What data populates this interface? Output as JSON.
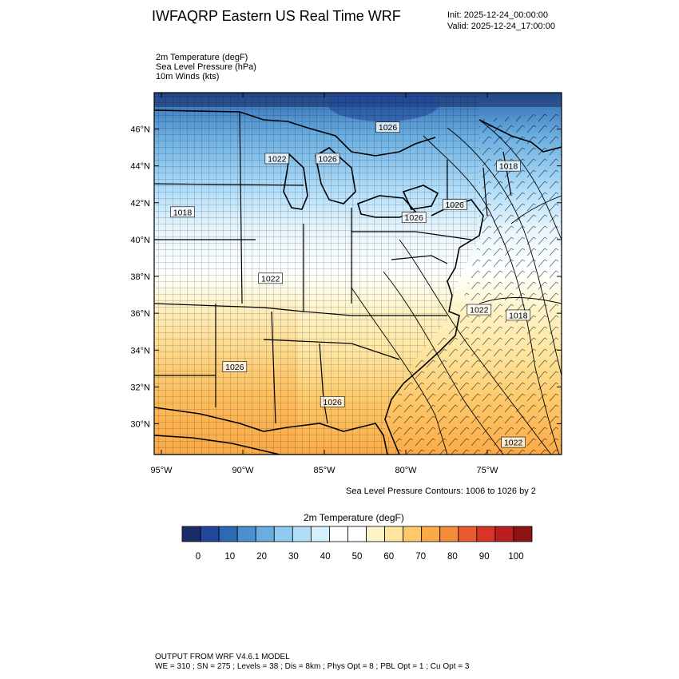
{
  "header": {
    "title": "IWFAQRP Eastern US Real Time WRF",
    "init": "Init: 2025-12-24_00:00:00",
    "valid": "Valid: 2025-12-24_17:00:00"
  },
  "fields": [
    "2m Temperature   (degF)",
    "Sea Level Pressure   (hPa)",
    "10m Winds   (kts)"
  ],
  "map": {
    "lat_labels": [
      "46°N",
      "44°N",
      "42°N",
      "40°N",
      "38°N",
      "36°N",
      "34°N",
      "32°N",
      "30°N"
    ],
    "lat_values": [
      46,
      44,
      42,
      40,
      38,
      36,
      34,
      32,
      30
    ],
    "lon_labels": [
      "95°W",
      "90°W",
      "85°W",
      "80°W",
      "75°W"
    ],
    "lon_values": [
      -95,
      -90,
      -85,
      -80,
      -75
    ],
    "pressure_labels": [
      {
        "text": "1026",
        "lon": -81.1,
        "lat": 46.1
      },
      {
        "text": "1022",
        "lon": -87.9,
        "lat": 44.4
      },
      {
        "text": "1026",
        "lon": -84.8,
        "lat": 44.4
      },
      {
        "text": "1018",
        "lon": -93.7,
        "lat": 41.5
      },
      {
        "text": "1026",
        "lon": -79.5,
        "lat": 41.2
      },
      {
        "text": "1026",
        "lon": -77.0,
        "lat": 41.9
      },
      {
        "text": "1018",
        "lon": -73.7,
        "lat": 44.0
      },
      {
        "text": "1022",
        "lon": -88.3,
        "lat": 37.9
      },
      {
        "text": "1022",
        "lon": -75.5,
        "lat": 36.2
      },
      {
        "text": "1018",
        "lon": -73.1,
        "lat": 35.9
      },
      {
        "text": "1026",
        "lon": -90.5,
        "lat": 33.1
      },
      {
        "text": "1026",
        "lon": -84.5,
        "lat": 31.2
      },
      {
        "text": "1022",
        "lon": -73.4,
        "lat": 29.0
      }
    ],
    "contour_note": "Sea Level Pressure Contours: 1006 to 1026 by 2"
  },
  "colorbar": {
    "title": "2m Temperature  (degF)",
    "colors": [
      "#1a2d66",
      "#22479a",
      "#2f69b3",
      "#4a8fd0",
      "#6aaee0",
      "#8fcbef",
      "#b2defa",
      "#d6effc",
      "#ffffff",
      "#ffffff",
      "#fdf3c8",
      "#fde5a0",
      "#fdc96a",
      "#fbaa48",
      "#f48c3a",
      "#e95b2e",
      "#d8342a",
      "#b91e23",
      "#8e1414"
    ],
    "tick_labels": [
      "0",
      "10",
      "20",
      "30",
      "40",
      "50",
      "60",
      "70",
      "80",
      "90",
      "100"
    ]
  },
  "footer": [
    "OUTPUT FROM WRF V4.6.1 MODEL",
    "WE = 310 ; SN = 275 ; Levels = 38 ; Dis = 8km ; Phys Opt = 8 ; PBL Opt = 1 ; Cu Opt = 3"
  ]
}
